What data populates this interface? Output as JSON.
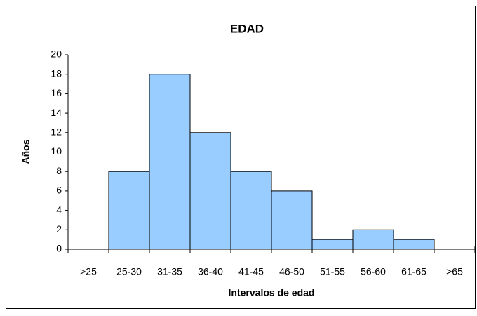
{
  "chart_data": {
    "type": "bar",
    "title": "EDAD",
    "x_label": "Intervalos de edad",
    "y_label": "Años",
    "categories": [
      ">25",
      "25-30",
      "31-35",
      "36-40",
      "41-45",
      "46-50",
      "51-55",
      "56-60",
      "61-65",
      ">65"
    ],
    "values": [
      0,
      8,
      18,
      12,
      8,
      6,
      1,
      2,
      1,
      0
    ],
    "color": "#99ccff",
    "ylim": [
      0,
      20
    ],
    "yticks": [
      0,
      2,
      4,
      6,
      8,
      10,
      12,
      14,
      16,
      18,
      20
    ],
    "grid": false
  }
}
